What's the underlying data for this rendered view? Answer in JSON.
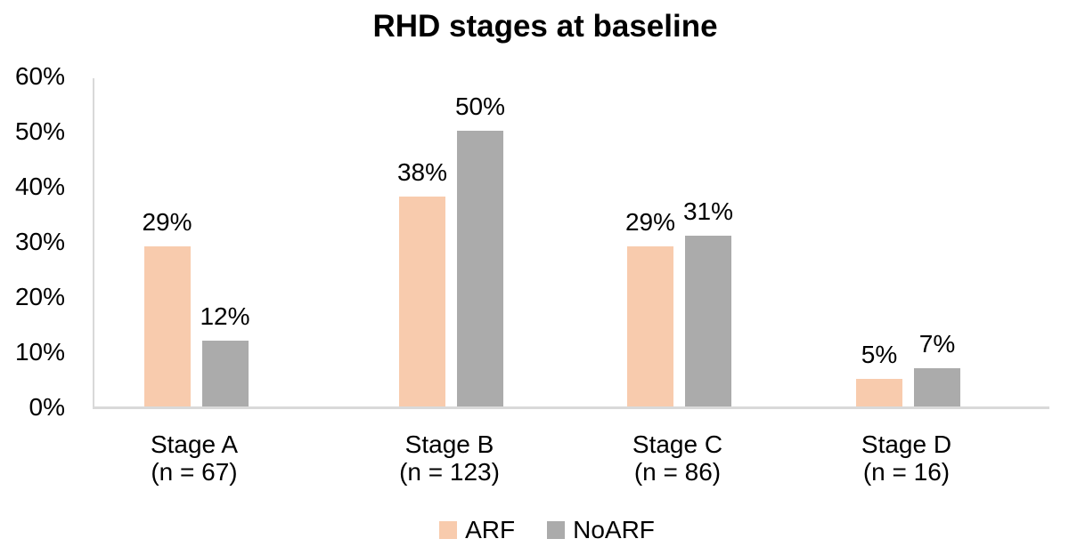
{
  "chart_data": {
    "type": "bar",
    "title": "RHD stages at baseline",
    "categories": [
      "Stage A",
      "Stage B",
      "Stage C",
      "Stage D"
    ],
    "category_sublabels": [
      "(n = 67)",
      "(n = 123)",
      "(n = 86)",
      "(n = 16)"
    ],
    "series": [
      {
        "name": "ARF",
        "color": "#F8CBAD",
        "values": [
          29,
          38,
          29,
          5
        ]
      },
      {
        "name": "NoARF",
        "color": "#ABABAB",
        "values": [
          12,
          50,
          31,
          7
        ]
      }
    ],
    "data_label_suffix": "%",
    "y_tick_labels": [
      "0%",
      "10%",
      "20%",
      "30%",
      "40%",
      "50%",
      "60%"
    ],
    "ylim": [
      0,
      60
    ],
    "xlabel": "",
    "ylabel": "",
    "grid": "off",
    "legend_position": "bottom",
    "axis_color": "#D9D9D9",
    "text_color": "#000000",
    "background_color": "#FFFFFF"
  }
}
